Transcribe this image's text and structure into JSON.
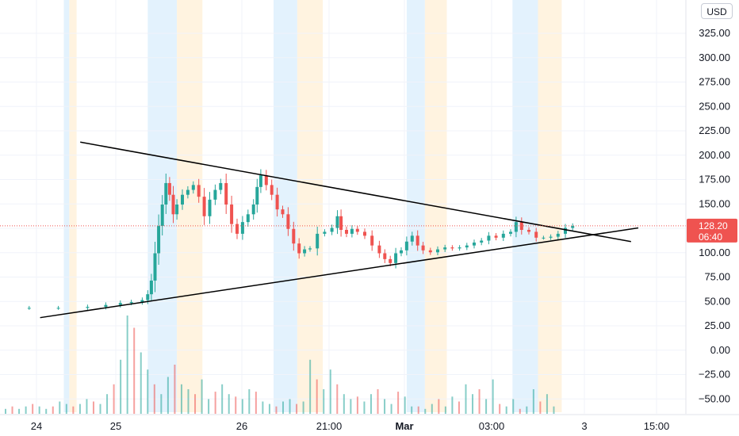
{
  "currency": "USD",
  "last_price": {
    "value": "128.20",
    "countdown": "06:40"
  },
  "colors": {
    "up": "#26a69a",
    "down": "#ef5350",
    "session_blue": "#e3f2fd",
    "session_orange": "#fff3e0",
    "trendline": "#000000",
    "price_line": "#ef5350"
  },
  "chart_data": {
    "type": "candlestick",
    "title": "",
    "xlabel": "",
    "ylabel": "",
    "ylim": [
      -65,
      355
    ],
    "y_ticks": [
      "325.00",
      "300.00",
      "275.00",
      "250.00",
      "225.00",
      "200.00",
      "175.00",
      "150.00",
      "125.00",
      "100.00",
      "75.00",
      "50.00",
      "25.00",
      "0.00",
      "−25.00",
      "−50.00"
    ],
    "x_ticks": [
      {
        "label": "24",
        "bold": false
      },
      {
        "label": "25",
        "bold": false
      },
      {
        "label": "26",
        "bold": false
      },
      {
        "label": "21:00",
        "bold": false
      },
      {
        "label": "Mar",
        "bold": true
      },
      {
        "label": "03:00",
        "bold": false
      },
      {
        "label": "3",
        "bold": false
      },
      {
        "label": "15:00",
        "bold": false
      }
    ],
    "price_path": [
      [
        0,
        44
      ],
      [
        0.8,
        44
      ],
      [
        1.6,
        44
      ],
      [
        2.4,
        45
      ],
      [
        2.9,
        47
      ],
      [
        3.3,
        49
      ],
      [
        3.6,
        50
      ],
      [
        3.9,
        52
      ],
      [
        4.05,
        58
      ],
      [
        4.15,
        72
      ],
      [
        4.25,
        100
      ],
      [
        4.35,
        128
      ],
      [
        4.45,
        150
      ],
      [
        4.55,
        172
      ],
      [
        4.65,
        160
      ],
      [
        4.75,
        140
      ],
      [
        4.85,
        150
      ],
      [
        5.0,
        160
      ],
      [
        5.15,
        165
      ],
      [
        5.3,
        170
      ],
      [
        5.45,
        158
      ],
      [
        5.6,
        138
      ],
      [
        5.75,
        155
      ],
      [
        5.9,
        165
      ],
      [
        6.05,
        172
      ],
      [
        6.2,
        150
      ],
      [
        6.35,
        130
      ],
      [
        6.5,
        120
      ],
      [
        6.65,
        132
      ],
      [
        6.8,
        140
      ],
      [
        6.95,
        150
      ],
      [
        7.05,
        168
      ],
      [
        7.15,
        180
      ],
      [
        7.3,
        170
      ],
      [
        7.45,
        160
      ],
      [
        7.6,
        145
      ],
      [
        7.75,
        140
      ],
      [
        7.9,
        125
      ],
      [
        8.05,
        110
      ],
      [
        8.2,
        100
      ],
      [
        8.35,
        104
      ],
      [
        8.5,
        105
      ],
      [
        8.7,
        120
      ],
      [
        8.9,
        122
      ],
      [
        9.1,
        126
      ],
      [
        9.25,
        138
      ],
      [
        9.35,
        124
      ],
      [
        9.5,
        120
      ],
      [
        9.65,
        125
      ],
      [
        9.8,
        122
      ],
      [
        10.0,
        118
      ],
      [
        10.2,
        108
      ],
      [
        10.4,
        100
      ],
      [
        10.55,
        94
      ],
      [
        10.7,
        90
      ],
      [
        10.85,
        100
      ],
      [
        11.0,
        103
      ],
      [
        11.15,
        112
      ],
      [
        11.3,
        118
      ],
      [
        11.45,
        108
      ],
      [
        11.6,
        103
      ],
      [
        11.8,
        101
      ],
      [
        12.0,
        104
      ],
      [
        12.2,
        106
      ],
      [
        12.4,
        105
      ],
      [
        12.6,
        106
      ],
      [
        12.8,
        108
      ],
      [
        13.0,
        111
      ],
      [
        13.2,
        113
      ],
      [
        13.4,
        118
      ],
      [
        13.6,
        116
      ],
      [
        13.8,
        120
      ],
      [
        14.0,
        122
      ],
      [
        14.15,
        132
      ],
      [
        14.3,
        124
      ],
      [
        14.5,
        122
      ],
      [
        14.7,
        116
      ],
      [
        14.9,
        116
      ],
      [
        15.1,
        117
      ],
      [
        15.3,
        120
      ],
      [
        15.5,
        126
      ],
      [
        15.7,
        128
      ]
    ],
    "volume": [
      2,
      3,
      2,
      3,
      4,
      3,
      2,
      3,
      5,
      4,
      3,
      4,
      6,
      5,
      4,
      8,
      12,
      22,
      40,
      35,
      25,
      18,
      12,
      8,
      15,
      20,
      12,
      10,
      8,
      14,
      6,
      9,
      12,
      8,
      7,
      6,
      10,
      9,
      5,
      4,
      3,
      5,
      6,
      4,
      5,
      22,
      14,
      10,
      18,
      12,
      8,
      6,
      7,
      5,
      8,
      10,
      6,
      4,
      9,
      7,
      3,
      3,
      2,
      4,
      6,
      3,
      7,
      5,
      12,
      8,
      10,
      6,
      14,
      4,
      3,
      6,
      2,
      3,
      10,
      5,
      8,
      3
    ],
    "trendlines": [
      {
        "name": "upper-resistance",
        "from": [
          2.2,
          214
        ],
        "to": [
          17.3,
          112
        ]
      },
      {
        "name": "lower-support",
        "from": [
          1.1,
          34
        ],
        "to": [
          17.5,
          126
        ]
      }
    ],
    "sessions": [
      {
        "kind": "blue",
        "range": [
          1.75,
          1.9
        ]
      },
      {
        "kind": "orange",
        "range": [
          1.9,
          2.1
        ]
      },
      {
        "kind": "blue",
        "range": [
          4.05,
          4.85
        ]
      },
      {
        "kind": "orange",
        "range": [
          4.85,
          5.55
        ]
      },
      {
        "kind": "blue",
        "range": [
          7.5,
          8.15
        ]
      },
      {
        "kind": "orange",
        "range": [
          8.15,
          8.85
        ]
      },
      {
        "kind": "blue",
        "range": [
          11.15,
          11.65
        ]
      },
      {
        "kind": "orange",
        "range": [
          11.65,
          12.25
        ]
      },
      {
        "kind": "blue",
        "range": [
          14.05,
          14.75
        ]
      },
      {
        "kind": "orange",
        "range": [
          14.75,
          15.4
        ]
      }
    ]
  }
}
